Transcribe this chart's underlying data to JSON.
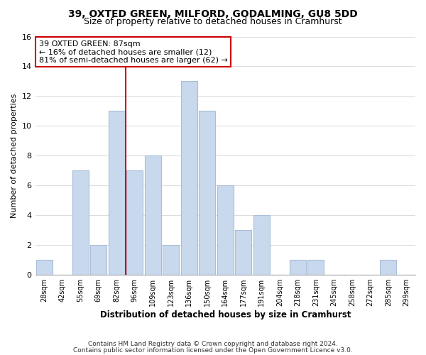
{
  "title": "39, OXTED GREEN, MILFORD, GODALMING, GU8 5DD",
  "subtitle": "Size of property relative to detached houses in Cramhurst",
  "xlabel": "Distribution of detached houses by size in Cramhurst",
  "ylabel": "Number of detached properties",
  "bar_labels": [
    "28sqm",
    "42sqm",
    "55sqm",
    "69sqm",
    "82sqm",
    "96sqm",
    "109sqm",
    "123sqm",
    "136sqm",
    "150sqm",
    "164sqm",
    "177sqm",
    "191sqm",
    "204sqm",
    "218sqm",
    "231sqm",
    "245sqm",
    "258sqm",
    "272sqm",
    "285sqm",
    "299sqm"
  ],
  "bar_values": [
    1,
    0,
    7,
    2,
    11,
    7,
    8,
    2,
    13,
    11,
    6,
    3,
    4,
    0,
    1,
    1,
    0,
    0,
    0,
    1,
    0
  ],
  "bar_color": "#c8d9ee",
  "bar_edge_color": "#aabdd8",
  "grid_color": "#dddddd",
  "background_color": "#ffffff",
  "property_line_color": "#cc0000",
  "property_line_index": 4,
  "annotation_title": "39 OXTED GREEN: 87sqm",
  "annotation_line1": "← 16% of detached houses are smaller (12)",
  "annotation_line2": "81% of semi-detached houses are larger (62) →",
  "annotation_box_color": "#ffffff",
  "annotation_border_color": "#cc0000",
  "ylim": [
    0,
    16
  ],
  "yticks": [
    0,
    2,
    4,
    6,
    8,
    10,
    12,
    14,
    16
  ],
  "footer_line1": "Contains HM Land Registry data © Crown copyright and database right 2024.",
  "footer_line2": "Contains public sector information licensed under the Open Government Licence v3.0."
}
